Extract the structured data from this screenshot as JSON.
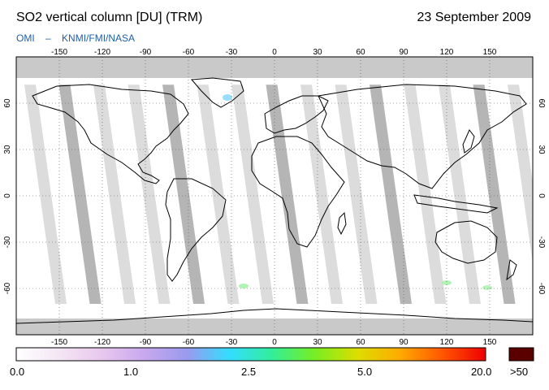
{
  "header": {
    "title": "SO2 vertical column [DU] (TRM)",
    "date": "23 September 2009",
    "source_org": "OMI",
    "source_sep": "–",
    "source_inst": "KNMI/FMI/NASA"
  },
  "map": {
    "projection": "equirectangular",
    "lon_range": [
      -180,
      180
    ],
    "lat_range": [
      -90,
      90
    ],
    "lon_ticks": [
      "-150",
      "-120",
      "-90",
      "-60",
      "-30",
      "0",
      "30",
      "60",
      "90",
      "120",
      "150"
    ],
    "lat_ticks": [
      "60",
      "30",
      "0",
      "-30",
      "-60"
    ],
    "colors": {
      "land_outline": "#000000",
      "swath_light": "#d6d6d6",
      "swath_dark": "#a8a8a8",
      "polar_grey": "#c9c9c9"
    }
  },
  "colorbar": {
    "labels": [
      "0.0",
      "1.0",
      "2.5",
      "5.0",
      "20.0"
    ],
    "overflow_label": ">50",
    "gradient": [
      "#ffffff",
      "#f4e6f4",
      "#e8c8ee",
      "#c8a8ee",
      "#9a9aee",
      "#33ddff",
      "#33ee99",
      "#77ee22",
      "#dddd00",
      "#ffaa00",
      "#ff5500",
      "#ee0000"
    ],
    "overflow_color": "#5a0000"
  }
}
